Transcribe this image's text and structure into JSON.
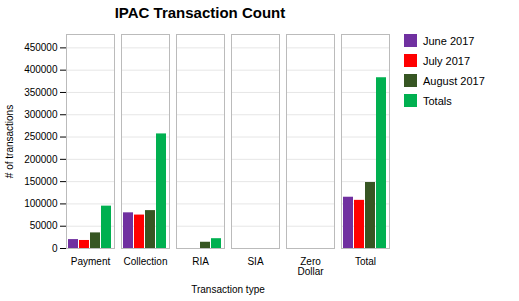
{
  "chart_data": {
    "type": "bar",
    "title": "IPAC Transaction  Count",
    "xlabel": "Transaction type",
    "ylabel": "# of transactions",
    "categories": [
      "Payment",
      "Collection",
      "RIA",
      "SIA",
      "Zero\nDollar",
      "Total"
    ],
    "series": [
      {
        "name": "June 2017",
        "color": "#7030a0",
        "values": [
          20000,
          80000,
          0,
          0,
          0,
          115000
        ]
      },
      {
        "name": "July 2017",
        "color": "#ff0000",
        "values": [
          18000,
          75000,
          0,
          0,
          0,
          108000
        ]
      },
      {
        "name": "August 2017",
        "color": "#375623",
        "values": [
          35000,
          85000,
          14000,
          0,
          0,
          148000
        ]
      },
      {
        "name": "Totals",
        "color": "#00b050",
        "values": [
          95000,
          257000,
          22000,
          0,
          0,
          383000
        ]
      }
    ],
    "ylim": [
      0,
      480000
    ],
    "yticks": [
      0,
      50000,
      100000,
      150000,
      200000,
      250000,
      300000,
      350000,
      400000,
      450000
    ],
    "grid": true,
    "legend": "right"
  }
}
